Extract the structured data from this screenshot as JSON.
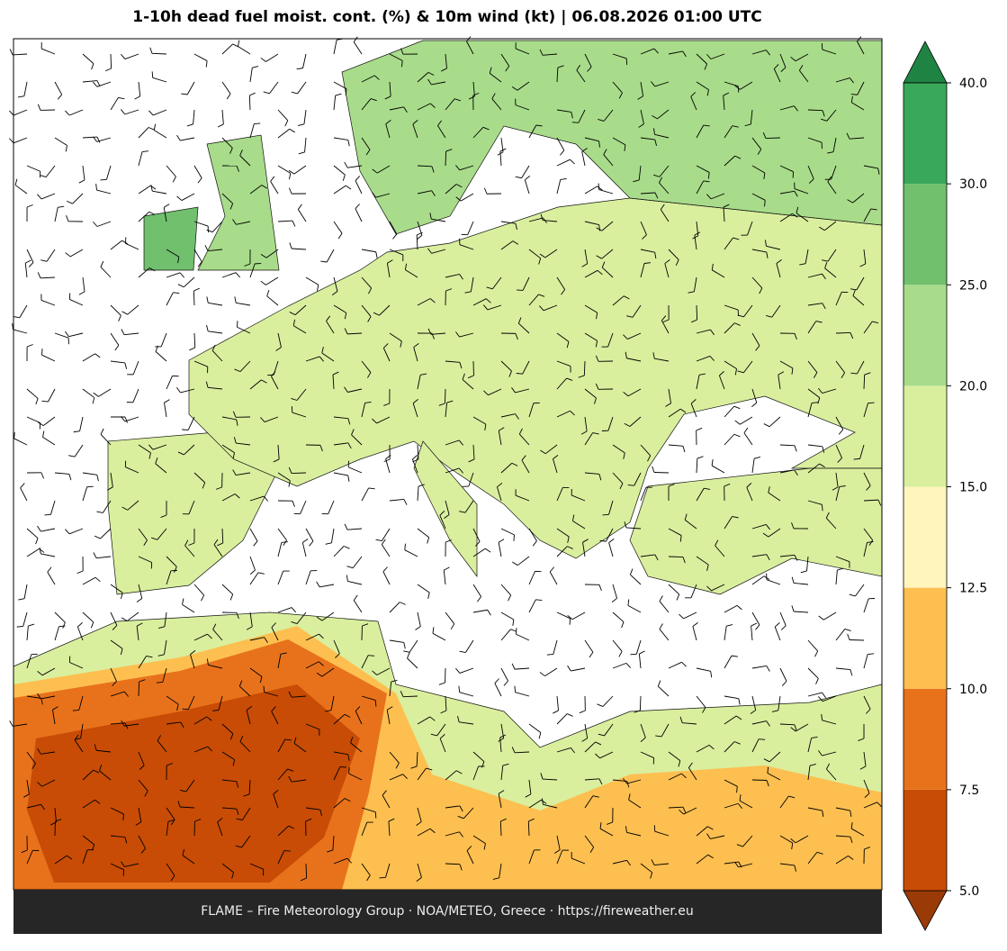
{
  "chart_data": {
    "type": "map",
    "title": "1-10h dead fuel moist. cont. (%) & 10m wind (kt)  |  06.08.2026 01:00 UTC",
    "footer": "FLAME – Fire Meteorology Group · NOA/METEO, Greece · https://fireweather.eu",
    "colorbar": {
      "ticks": [
        {
          "value": 5,
          "label": "5.0"
        },
        {
          "value": 7.5,
          "label": "7.5"
        },
        {
          "value": 10,
          "label": "10.0"
        },
        {
          "value": 12.5,
          "label": "12.5"
        },
        {
          "value": 15,
          "label": "15.0"
        },
        {
          "value": 20,
          "label": "20.0"
        },
        {
          "value": 25,
          "label": "25.0"
        },
        {
          "value": 30,
          "label": "30.0"
        },
        {
          "value": 40,
          "label": "40.0"
        }
      ],
      "colors": [
        "#c84c05",
        "#e8721b",
        "#fdbf50",
        "#fff5bd",
        "#d9ef9e",
        "#a8dc8a",
        "#70c06d",
        "#3aa85a"
      ],
      "under_color": "#9a3a07",
      "over_color": "#1f8443"
    }
  }
}
